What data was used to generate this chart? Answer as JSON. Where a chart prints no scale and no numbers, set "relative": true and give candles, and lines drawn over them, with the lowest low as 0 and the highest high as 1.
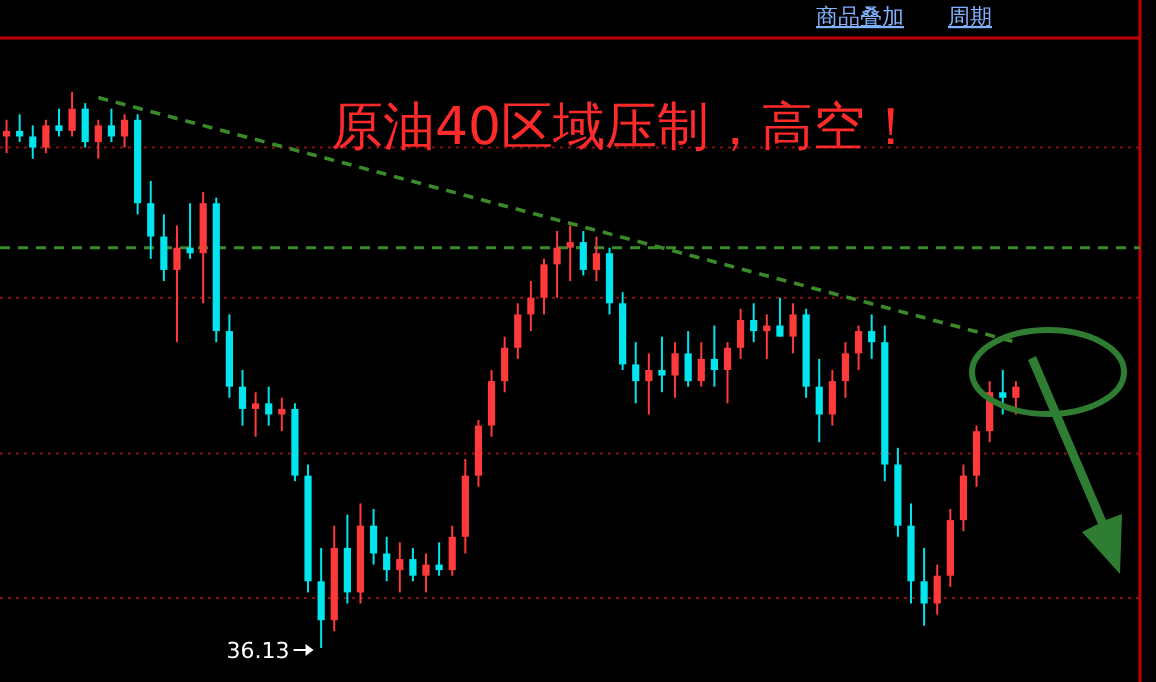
{
  "chart_data": {
    "type": "candlestick",
    "title": "原油40区域压制，高空！",
    "relative": true,
    "categories": [
      null,
      null,
      null,
      null,
      null,
      null,
      null,
      null,
      null,
      null,
      null,
      null,
      null,
      null,
      null,
      null,
      null,
      null,
      null,
      null,
      null,
      null,
      null,
      null,
      null,
      null,
      null,
      null,
      null,
      null,
      null,
      null,
      null,
      null,
      null,
      null,
      null,
      null,
      null,
      null,
      null,
      null,
      null,
      null,
      null,
      null,
      null,
      null,
      null,
      null,
      null,
      null,
      null,
      null,
      null,
      null,
      null,
      null,
      null,
      null,
      null,
      null,
      null,
      null,
      null,
      null,
      null,
      null,
      null,
      null,
      null,
      null,
      null,
      null,
      null,
      null,
      null,
      null
    ],
    "ohlc": [
      [
        0.92,
        0.95,
        0.89,
        0.93
      ],
      [
        0.93,
        0.96,
        0.91,
        0.92
      ],
      [
        0.92,
        0.94,
        0.88,
        0.9
      ],
      [
        0.9,
        0.95,
        0.89,
        0.94
      ],
      [
        0.94,
        0.97,
        0.92,
        0.93
      ],
      [
        0.93,
        1.0,
        0.92,
        0.97
      ],
      [
        0.97,
        0.98,
        0.9,
        0.91
      ],
      [
        0.91,
        0.95,
        0.88,
        0.94
      ],
      [
        0.94,
        0.97,
        0.91,
        0.92
      ],
      [
        0.92,
        0.96,
        0.9,
        0.95
      ],
      [
        0.95,
        0.96,
        0.78,
        0.8
      ],
      [
        0.8,
        0.84,
        0.7,
        0.74
      ],
      [
        0.74,
        0.78,
        0.66,
        0.68
      ],
      [
        0.68,
        0.76,
        0.55,
        0.72
      ],
      [
        0.72,
        0.8,
        0.7,
        0.71
      ],
      [
        0.71,
        0.82,
        0.62,
        0.8
      ],
      [
        0.8,
        0.81,
        0.55,
        0.57
      ],
      [
        0.57,
        0.6,
        0.45,
        0.47
      ],
      [
        0.47,
        0.5,
        0.4,
        0.43
      ],
      [
        0.43,
        0.46,
        0.38,
        0.44
      ],
      [
        0.44,
        0.47,
        0.4,
        0.42
      ],
      [
        0.42,
        0.45,
        0.39,
        0.43
      ],
      [
        0.43,
        0.44,
        0.3,
        0.31
      ],
      [
        0.31,
        0.33,
        0.1,
        0.12
      ],
      [
        0.12,
        0.18,
        0.0,
        0.05
      ],
      [
        0.05,
        0.22,
        0.03,
        0.18
      ],
      [
        0.18,
        0.24,
        0.08,
        0.1
      ],
      [
        0.1,
        0.26,
        0.08,
        0.22
      ],
      [
        0.22,
        0.25,
        0.15,
        0.17
      ],
      [
        0.17,
        0.2,
        0.12,
        0.14
      ],
      [
        0.14,
        0.19,
        0.1,
        0.16
      ],
      [
        0.16,
        0.18,
        0.12,
        0.13
      ],
      [
        0.13,
        0.17,
        0.1,
        0.15
      ],
      [
        0.15,
        0.19,
        0.13,
        0.14
      ],
      [
        0.14,
        0.22,
        0.13,
        0.2
      ],
      [
        0.2,
        0.34,
        0.17,
        0.31
      ],
      [
        0.31,
        0.41,
        0.29,
        0.4
      ],
      [
        0.4,
        0.5,
        0.38,
        0.48
      ],
      [
        0.48,
        0.56,
        0.46,
        0.54
      ],
      [
        0.54,
        0.62,
        0.52,
        0.6
      ],
      [
        0.6,
        0.66,
        0.57,
        0.63
      ],
      [
        0.63,
        0.7,
        0.6,
        0.69
      ],
      [
        0.69,
        0.75,
        0.63,
        0.72
      ],
      [
        0.72,
        0.76,
        0.66,
        0.73
      ],
      [
        0.73,
        0.75,
        0.67,
        0.68
      ],
      [
        0.68,
        0.74,
        0.66,
        0.71
      ],
      [
        0.71,
        0.72,
        0.6,
        0.62
      ],
      [
        0.62,
        0.64,
        0.5,
        0.51
      ],
      [
        0.51,
        0.55,
        0.44,
        0.48
      ],
      [
        0.48,
        0.53,
        0.42,
        0.5
      ],
      [
        0.5,
        0.56,
        0.46,
        0.49
      ],
      [
        0.49,
        0.55,
        0.45,
        0.53
      ],
      [
        0.53,
        0.57,
        0.47,
        0.48
      ],
      [
        0.48,
        0.55,
        0.47,
        0.52
      ],
      [
        0.52,
        0.58,
        0.47,
        0.5
      ],
      [
        0.5,
        0.55,
        0.44,
        0.54
      ],
      [
        0.54,
        0.61,
        0.52,
        0.59
      ],
      [
        0.59,
        0.62,
        0.55,
        0.57
      ],
      [
        0.57,
        0.6,
        0.52,
        0.58
      ],
      [
        0.58,
        0.63,
        0.56,
        0.56
      ],
      [
        0.56,
        0.62,
        0.53,
        0.6
      ],
      [
        0.6,
        0.61,
        0.45,
        0.47
      ],
      [
        0.47,
        0.52,
        0.37,
        0.42
      ],
      [
        0.42,
        0.5,
        0.4,
        0.48
      ],
      [
        0.48,
        0.55,
        0.45,
        0.53
      ],
      [
        0.53,
        0.58,
        0.5,
        0.57
      ],
      [
        0.57,
        0.6,
        0.52,
        0.55
      ],
      [
        0.55,
        0.58,
        0.3,
        0.33
      ],
      [
        0.33,
        0.36,
        0.2,
        0.22
      ],
      [
        0.22,
        0.26,
        0.08,
        0.12
      ],
      [
        0.12,
        0.18,
        0.04,
        0.08
      ],
      [
        0.08,
        0.15,
        0.06,
        0.13
      ],
      [
        0.13,
        0.25,
        0.11,
        0.23
      ],
      [
        0.23,
        0.33,
        0.21,
        0.31
      ],
      [
        0.31,
        0.4,
        0.29,
        0.39
      ],
      [
        0.39,
        0.48,
        0.37,
        0.46
      ],
      [
        0.46,
        0.5,
        0.42,
        0.45
      ],
      [
        0.45,
        0.48,
        0.42,
        0.47
      ]
    ],
    "colors": [
      "#ff3a3a",
      "#00e5ee",
      "#00e5ee",
      "#ff3a3a",
      "#00e5ee",
      "#ff3a3a",
      "#00e5ee",
      "#ff3a3a",
      "#00e5ee",
      "#ff3a3a",
      "#00e5ee",
      "#00e5ee",
      "#00e5ee",
      "#ff3a3a",
      "#00e5ee",
      "#ff3a3a",
      "#00e5ee",
      "#00e5ee",
      "#00e5ee",
      "#ff3a3a",
      "#00e5ee",
      "#ff3a3a",
      "#00e5ee",
      "#00e5ee",
      "#00e5ee",
      "#ff3a3a",
      "#00e5ee",
      "#ff3a3a",
      "#00e5ee",
      "#00e5ee",
      "#ff3a3a",
      "#00e5ee",
      "#ff3a3a",
      "#00e5ee",
      "#ff3a3a",
      "#ff3a3a",
      "#ff3a3a",
      "#ff3a3a",
      "#ff3a3a",
      "#ff3a3a",
      "#ff3a3a",
      "#ff3a3a",
      "#ff3a3a",
      "#ff3a3a",
      "#00e5ee",
      "#ff3a3a",
      "#00e5ee",
      "#00e5ee",
      "#00e5ee",
      "#ff3a3a",
      "#00e5ee",
      "#ff3a3a",
      "#00e5ee",
      "#ff3a3a",
      "#00e5ee",
      "#ff3a3a",
      "#ff3a3a",
      "#00e5ee",
      "#ff3a3a",
      "#00e5ee",
      "#ff3a3a",
      "#00e5ee",
      "#00e5ee",
      "#ff3a3a",
      "#ff3a3a",
      "#ff3a3a",
      "#00e5ee",
      "#00e5ee",
      "#00e5ee",
      "#00e5ee",
      "#00e5ee",
      "#ff3a3a",
      "#ff3a3a",
      "#ff3a3a",
      "#ff3a3a",
      "#ff3a3a",
      "#00e5ee",
      "#ff3a3a"
    ],
    "series": [
      {
        "type": "line",
        "values": [
          null,
          null,
          null,
          null,
          null,
          null,
          null,
          0.99,
          null,
          null,
          null,
          null,
          null,
          null,
          null,
          null,
          null,
          null,
          null,
          null,
          null,
          null,
          null,
          null,
          null,
          null,
          null,
          null,
          null,
          null,
          null,
          null,
          null,
          null,
          null,
          null,
          null,
          null,
          null,
          null,
          null,
          null,
          null,
          null,
          null,
          null,
          null,
          null,
          null,
          null,
          null,
          null,
          null,
          null,
          null,
          null,
          null,
          null,
          null,
          null,
          null,
          null,
          null,
          null,
          null,
          null,
          null,
          null,
          null,
          null,
          null,
          null,
          null,
          null,
          null,
          null,
          null,
          0.55
        ],
        "color": "#3a8a2a",
        "line_style": "dashed"
      }
    ],
    "ref_lines": [
      {
        "axis": "y",
        "value": 0.72,
        "color": "#3a8a2a",
        "line_style": "dashed"
      },
      {
        "axis": "y",
        "value": 0.9,
        "color": "#8b1010",
        "line_style": "dotted"
      },
      {
        "axis": "y",
        "value": 0.63,
        "color": "#8b1010",
        "line_style": "dotted"
      },
      {
        "axis": "y",
        "value": 0.35,
        "color": "#8b1010",
        "line_style": "dotted"
      },
      {
        "axis": "y",
        "value": 0.09,
        "color": "#8b1010",
        "line_style": "dotted"
      }
    ],
    "annotations": [
      "36.13",
      "商品叠加",
      "周期"
    ]
  }
}
